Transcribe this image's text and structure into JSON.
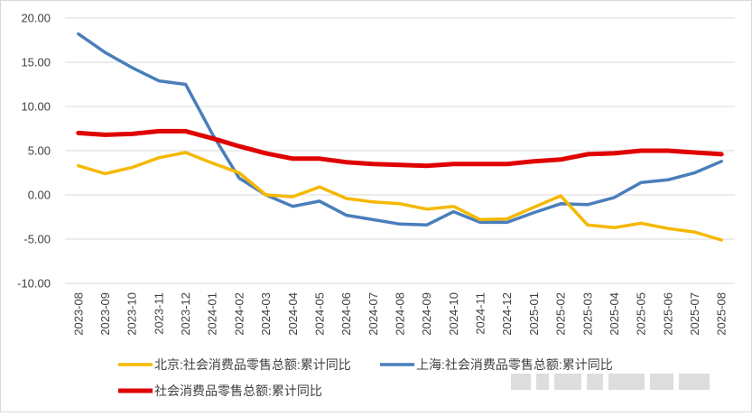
{
  "chart_data": {
    "type": "line",
    "categories": [
      "2023-08",
      "2023-09",
      "2023-10",
      "2023-11",
      "2023-12",
      "2024-01",
      "2024-02",
      "2024-03",
      "2024-04",
      "2024-05",
      "2024-06",
      "2024-07",
      "2024-08",
      "2024-09",
      "2024-10",
      "2024-11",
      "2024-12",
      "2025-01",
      "2025-02",
      "2025-03",
      "2025-04",
      "2025-05",
      "2025-06",
      "2025-07",
      "2025-08"
    ],
    "ylim": [
      -10,
      20
    ],
    "yticks": [
      -10,
      -5,
      0,
      5,
      10,
      15,
      20
    ],
    "ytick_labels": [
      "-10.00",
      "-5.00",
      "0.00",
      "5.00",
      "10.00",
      "15.00",
      "20.00"
    ],
    "grid": "horizontal",
    "legend_position": "bottom",
    "series": [
      {
        "name": "北京:社会消费品零售总额:累计同比",
        "color": "#F5B800",
        "values": [
          3.3,
          2.4,
          3.1,
          4.2,
          4.8,
          3.6,
          2.5,
          0.0,
          -0.2,
          0.9,
          -0.4,
          -0.8,
          -1.0,
          -1.6,
          -1.3,
          -2.8,
          -2.7,
          -1.4,
          -0.1,
          -3.4,
          -3.7,
          -3.2,
          -3.8,
          -4.2,
          -5.1
        ]
      },
      {
        "name": "上海:社会消费品零售总额:累计同比",
        "color": "#4A7EBB",
        "values": [
          18.2,
          16.1,
          14.4,
          12.9,
          12.5,
          6.9,
          1.9,
          0.0,
          -1.3,
          -0.7,
          -2.3,
          -2.8,
          -3.3,
          -3.4,
          -1.9,
          -3.1,
          -3.1,
          -2.0,
          -1.0,
          -1.1,
          -0.3,
          1.4,
          1.7,
          2.5,
          3.8
        ]
      },
      {
        "name": "社会消费品零售总额:累计同比",
        "color": "#E00000",
        "values": [
          7.0,
          6.8,
          6.9,
          7.2,
          7.2,
          6.4,
          5.5,
          4.7,
          4.1,
          4.1,
          3.7,
          3.5,
          3.4,
          3.3,
          3.5,
          3.5,
          3.5,
          3.8,
          4.0,
          4.6,
          4.7,
          5.0,
          5.0,
          4.8,
          4.6
        ]
      }
    ]
  }
}
